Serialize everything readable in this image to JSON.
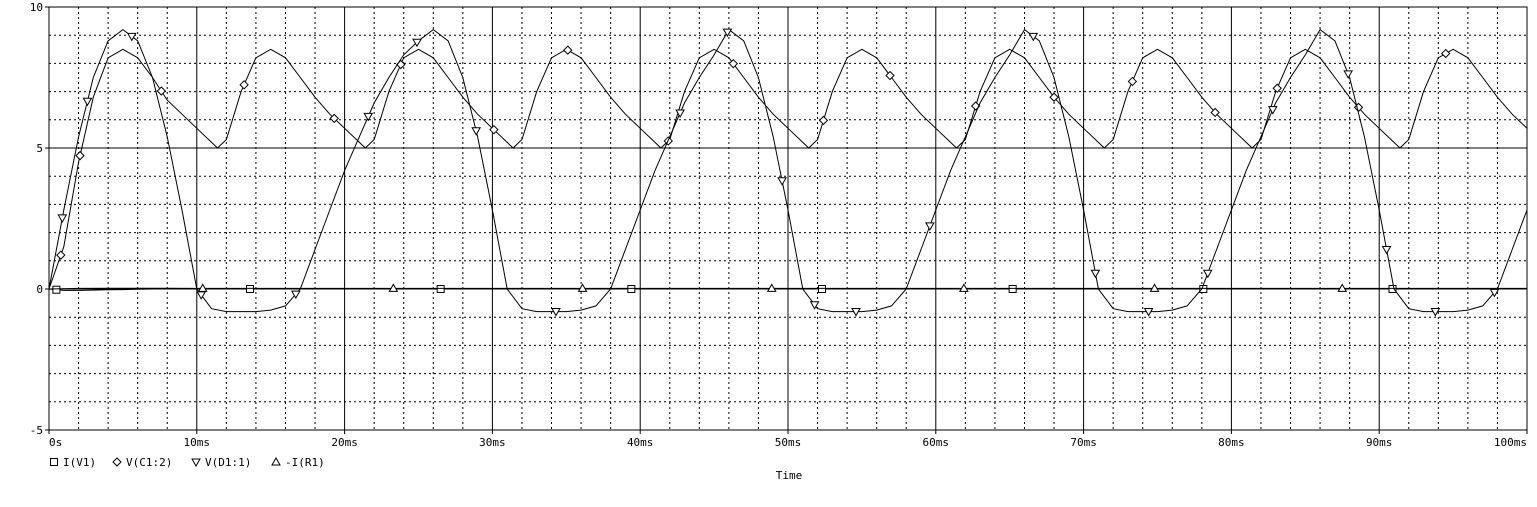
{
  "chart_data": {
    "type": "line",
    "xlabel": "Time",
    "ylabel": "",
    "xlim": [
      0,
      100
    ],
    "ylim": [
      -5,
      10
    ],
    "x_ticks": [
      {
        "v": 0,
        "label": "0s"
      },
      {
        "v": 10,
        "label": "10ms"
      },
      {
        "v": 20,
        "label": "20ms"
      },
      {
        "v": 30,
        "label": "30ms"
      },
      {
        "v": 40,
        "label": "40ms"
      },
      {
        "v": 50,
        "label": "50ms"
      },
      {
        "v": 60,
        "label": "60ms"
      },
      {
        "v": 70,
        "label": "70ms"
      },
      {
        "v": 80,
        "label": "80ms"
      },
      {
        "v": 90,
        "label": "90ms"
      },
      {
        "v": 100,
        "label": "100ms"
      }
    ],
    "y_ticks": [
      {
        "v": 10,
        "label": "10"
      },
      {
        "v": 5,
        "label": "5"
      },
      {
        "v": 0,
        "label": "0"
      },
      {
        "v": -5,
        "label": "-5"
      }
    ],
    "grid": true,
    "legend_position": "bottom-left",
    "series": [
      {
        "name": "I(V1)",
        "marker": "square",
        "x": [
          0,
          1,
          2,
          3,
          4,
          5,
          6,
          7,
          8,
          9,
          10,
          11,
          12,
          14,
          16,
          18,
          20,
          22,
          24,
          26,
          28,
          30,
          32,
          34,
          36,
          38,
          40,
          42,
          44,
          46,
          48,
          50,
          52,
          54,
          56,
          58,
          60,
          62,
          64,
          66,
          68,
          70,
          72,
          74,
          76,
          78,
          80,
          82,
          84,
          86,
          88,
          90,
          92,
          94,
          96,
          98,
          100
        ],
        "y": [
          0,
          -0.05,
          -0.05,
          -0.04,
          -0.03,
          -0.02,
          -0.01,
          0,
          0,
          0,
          0,
          0,
          0,
          0,
          0,
          0,
          0,
          0,
          0,
          0,
          0,
          0,
          0,
          0,
          0,
          0,
          0,
          0,
          0,
          0,
          0,
          0,
          0,
          0,
          0,
          0,
          0,
          0,
          0,
          0,
          0,
          0,
          0,
          0,
          0,
          0,
          0,
          0,
          0,
          0,
          0,
          0,
          0,
          0,
          0,
          0,
          0
        ],
        "marker_x": [
          0.5,
          13.6,
          26.5,
          39.4,
          52.3,
          65.2,
          78.1,
          90.9
        ]
      },
      {
        "name": "V(C1:2)",
        "marker": "diamond",
        "x": [
          0,
          1,
          2,
          3,
          4,
          5,
          6,
          7,
          8,
          9,
          10,
          11,
          11.4,
          12,
          13,
          14,
          15,
          16,
          17,
          18,
          19,
          20,
          21,
          21.4,
          22,
          23,
          24,
          25,
          26,
          27,
          28,
          29,
          30,
          31,
          31.4,
          32,
          33,
          34,
          35,
          36,
          37,
          38,
          39,
          40,
          41,
          41.4,
          42,
          43,
          44,
          45,
          46,
          47,
          48,
          49,
          50,
          51,
          51.4,
          52,
          53,
          54,
          55,
          56,
          57,
          58,
          59,
          60,
          61,
          61.4,
          62,
          63,
          64,
          65,
          66,
          67,
          68,
          69,
          70,
          71,
          71.4,
          72,
          73,
          74,
          75,
          76,
          77,
          78,
          79,
          80,
          81,
          81.4,
          82,
          83,
          84,
          85,
          86,
          87,
          88,
          89,
          90,
          91,
          91.4,
          92,
          93,
          94,
          95,
          96,
          97,
          98,
          99,
          100
        ],
        "y": [
          0,
          1.5,
          4.5,
          6.8,
          8.2,
          8.5,
          8.2,
          7.5,
          6.7,
          6.2,
          5.7,
          5.2,
          5.0,
          5.3,
          7.0,
          8.2,
          8.5,
          8.2,
          7.5,
          6.8,
          6.2,
          5.7,
          5.2,
          5.0,
          5.3,
          7.0,
          8.2,
          8.5,
          8.2,
          7.5,
          6.8,
          6.2,
          5.7,
          5.2,
          5.0,
          5.3,
          7.0,
          8.2,
          8.5,
          8.2,
          7.5,
          6.8,
          6.2,
          5.7,
          5.2,
          5.0,
          5.3,
          7.0,
          8.2,
          8.5,
          8.2,
          7.5,
          6.8,
          6.2,
          5.7,
          5.2,
          5.0,
          5.3,
          7.0,
          8.2,
          8.5,
          8.2,
          7.5,
          6.8,
          6.2,
          5.7,
          5.2,
          5.0,
          5.3,
          7.0,
          8.2,
          8.5,
          8.2,
          7.5,
          6.8,
          6.2,
          5.7,
          5.2,
          5.0,
          5.3,
          7.0,
          8.2,
          8.5,
          8.2,
          7.5,
          6.8,
          6.2,
          5.7,
          5.2,
          5.0,
          5.3,
          7.0,
          8.2,
          8.5,
          8.2,
          7.5,
          6.8,
          6.2,
          5.7,
          5.2,
          5.0,
          5.3,
          7.0,
          8.2,
          8.5,
          8.2,
          7.5,
          6.8,
          6.2,
          5.7
        ],
        "marker_x": [
          0.8,
          2.1,
          7.6,
          13.2,
          19.3,
          23.8,
          30.1,
          35.1,
          41.9,
          46.3,
          52.4,
          56.9,
          62.7,
          68.0,
          73.3,
          78.9,
          83.1,
          88.6,
          94.5
        ]
      },
      {
        "name": "V(D1:1)",
        "marker": "down-triangle",
        "x": [
          0,
          1,
          2,
          3,
          4,
          5,
          6,
          7,
          8,
          9,
          10,
          11,
          12,
          13,
          14,
          15,
          16,
          17,
          18,
          19,
          20,
          21,
          22,
          23,
          24,
          25,
          26,
          27,
          28,
          29,
          30,
          31,
          32,
          33,
          34,
          35,
          36,
          37,
          38,
          39,
          40,
          41,
          42,
          43,
          44,
          45,
          46,
          47,
          48,
          49,
          50,
          51,
          52,
          53,
          54,
          55,
          56,
          57,
          58,
          59,
          60,
          61,
          62,
          63,
          64,
          65,
          66,
          67,
          68,
          69,
          70,
          71,
          72,
          73,
          74,
          75,
          76,
          77,
          78,
          79,
          80,
          81,
          82,
          83,
          84,
          85,
          86,
          87,
          88,
          89,
          90,
          91,
          92,
          93,
          94,
          95,
          96,
          97,
          98,
          99,
          100
        ],
        "y": [
          0,
          2.8,
          5.4,
          7.5,
          8.8,
          9.2,
          8.8,
          7.5,
          5.4,
          2.8,
          0,
          -0.7,
          -0.8,
          -0.8,
          -0.8,
          -0.75,
          -0.6,
          0,
          1.4,
          2.8,
          4.2,
          5.4,
          6.6,
          7.5,
          8.3,
          8.8,
          9.2,
          8.8,
          7.5,
          5.4,
          2.8,
          0,
          -0.7,
          -0.8,
          -0.8,
          -0.8,
          -0.75,
          -0.6,
          0,
          1.4,
          2.8,
          4.2,
          5.4,
          6.6,
          7.5,
          8.3,
          9.2,
          8.8,
          7.5,
          5.4,
          2.8,
          0,
          -0.7,
          -0.8,
          -0.8,
          -0.8,
          -0.75,
          -0.6,
          0,
          1.4,
          2.8,
          4.2,
          5.4,
          6.6,
          7.5,
          8.3,
          9.2,
          8.8,
          7.5,
          5.4,
          2.8,
          0,
          -0.7,
          -0.8,
          -0.8,
          -0.8,
          -0.75,
          -0.6,
          0,
          1.4,
          2.8,
          4.2,
          5.4,
          6.6,
          7.5,
          8.3,
          9.2,
          8.8,
          7.5,
          5.4,
          2.8,
          0,
          -0.7,
          -0.8,
          -0.8,
          -0.8,
          -0.75,
          -0.6,
          0,
          1.4,
          2.8
        ],
        "marker_x": [
          0.9,
          2.6,
          5.6,
          10.3,
          16.7,
          21.6,
          24.9,
          28.9,
          34.3,
          42.7,
          45.9,
          49.6,
          51.8,
          54.6,
          59.6,
          66.6,
          70.8,
          74.4,
          78.4,
          82.8,
          87.9,
          90.5,
          93.8,
          97.8
        ]
      },
      {
        "name": "-I(R1)",
        "marker": "up-triangle",
        "x": [
          0,
          2,
          4,
          6,
          8,
          10,
          12,
          14,
          16,
          18,
          20,
          22,
          24,
          26,
          28,
          30,
          32,
          34,
          36,
          38,
          40,
          42,
          44,
          46,
          48,
          50,
          52,
          54,
          56,
          58,
          60,
          62,
          64,
          66,
          68,
          70,
          72,
          74,
          76,
          78,
          80,
          82,
          84,
          86,
          88,
          90,
          92,
          94,
          96,
          98,
          100
        ],
        "y": [
          0,
          0.02,
          0.03,
          0.03,
          0.03,
          0.02,
          0.02,
          0.02,
          0.02,
          0.02,
          0.02,
          0.02,
          0.02,
          0.02,
          0.02,
          0.02,
          0.02,
          0.02,
          0.02,
          0.02,
          0.02,
          0.02,
          0.02,
          0.02,
          0.02,
          0.02,
          0.02,
          0.02,
          0.02,
          0.02,
          0.02,
          0.02,
          0.02,
          0.02,
          0.02,
          0.02,
          0.02,
          0.02,
          0.02,
          0.02,
          0.02,
          0.02,
          0.02,
          0.02,
          0.02,
          0.02,
          0.02,
          0.02,
          0.02,
          0.02,
          0.02
        ],
        "marker_x": [
          10.4,
          23.3,
          36.1,
          48.9,
          61.9,
          74.8,
          87.5
        ]
      }
    ]
  }
}
